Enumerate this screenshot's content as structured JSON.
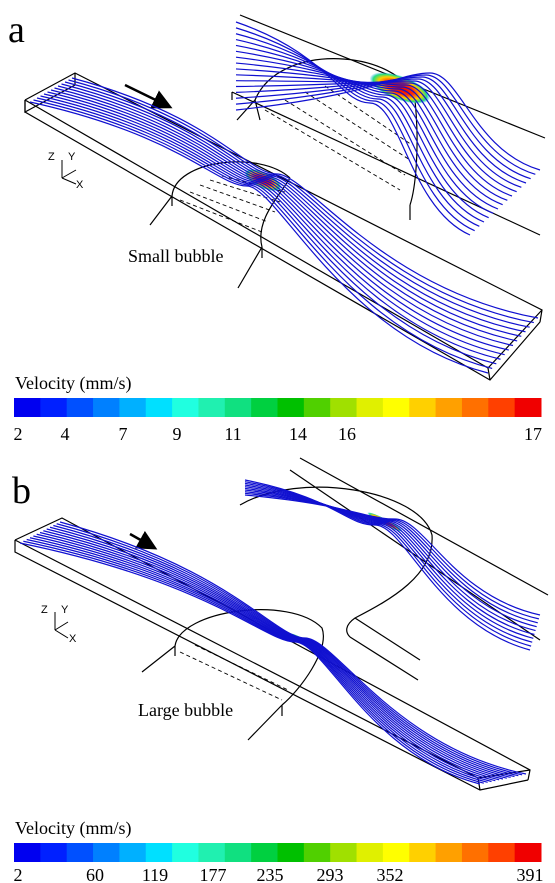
{
  "panels": [
    {
      "label": "a",
      "bubble_label": "Small bubble",
      "axes": [
        "Z",
        "Y",
        "X"
      ],
      "colorbar": {
        "title": "Velocity (mm/s)",
        "ticks": [
          2,
          4,
          7,
          9,
          11,
          14,
          16,
          17
        ]
      }
    },
    {
      "label": "b",
      "bubble_label": "Large bubble",
      "axes": [
        "Z",
        "Y",
        "X"
      ],
      "colorbar": {
        "title": "Velocity (mm/s)",
        "ticks": [
          2,
          60,
          119,
          177,
          235,
          293,
          352,
          391
        ]
      }
    }
  ]
}
